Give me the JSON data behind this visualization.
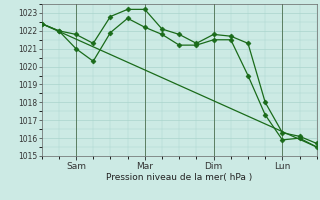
{
  "background_color": "#cceae4",
  "grid_color": "#aad4cc",
  "line_color": "#1a6b1a",
  "marker_color": "#1a6b1a",
  "xlabel": "Pression niveau de la mer( hPa )",
  "ylim": [
    1015,
    1023.5
  ],
  "yticks": [
    1015,
    1016,
    1017,
    1018,
    1019,
    1020,
    1021,
    1022,
    1023
  ],
  "xlim": [
    0,
    96
  ],
  "x_tick_positions": [
    12,
    36,
    60,
    84
  ],
  "x_tick_labels": [
    "Sam",
    "Mar",
    "Dim",
    "Lun"
  ],
  "series1": {
    "x": [
      0,
      6,
      12,
      18,
      24,
      30,
      36,
      42,
      48,
      54,
      60,
      66,
      72,
      78,
      84,
      90,
      96
    ],
    "y": [
      1022.4,
      1022.0,
      1021.0,
      1020.3,
      1021.9,
      1022.7,
      1022.2,
      1021.8,
      1021.2,
      1021.2,
      1021.5,
      1021.5,
      1019.5,
      1017.3,
      1015.9,
      1016.0,
      1015.5
    ],
    "marker": "D",
    "ms": 2.5
  },
  "series2": {
    "x": [
      0,
      6,
      12,
      18,
      24,
      30,
      36,
      42,
      48,
      54,
      60,
      66,
      72,
      78,
      84,
      90,
      96
    ],
    "y": [
      1022.4,
      1022.0,
      1021.8,
      1021.3,
      1022.8,
      1023.2,
      1023.2,
      1022.1,
      1021.8,
      1021.3,
      1021.8,
      1021.7,
      1021.3,
      1018.0,
      1016.3,
      1016.1,
      1015.7
    ],
    "marker": "D",
    "ms": 2.5
  },
  "series3_straight": {
    "x": [
      0,
      96
    ],
    "y": [
      1022.4,
      1015.5
    ]
  },
  "vline_positions": [
    12,
    36,
    60,
    84
  ],
  "vline_color": "#446644"
}
